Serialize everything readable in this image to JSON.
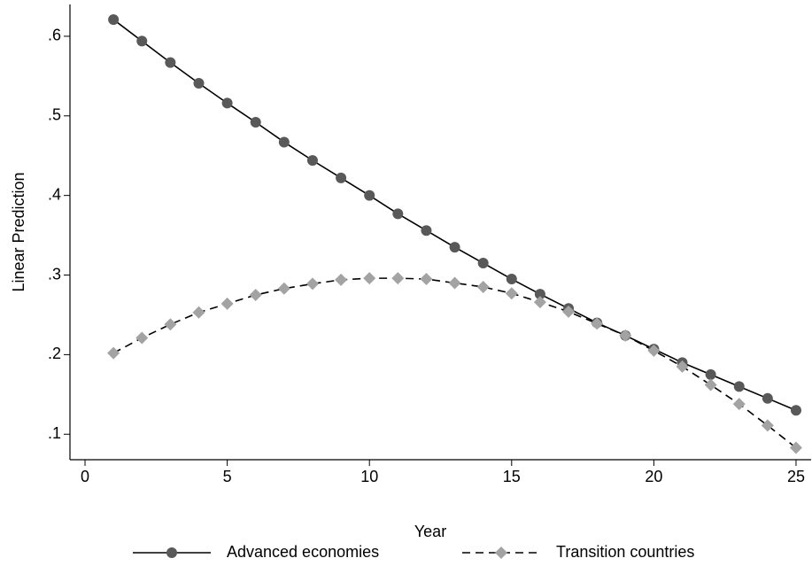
{
  "chart_data": {
    "type": "line",
    "x_label": "Year",
    "y_label": "Linear Prediction",
    "x": [
      1,
      2,
      3,
      4,
      5,
      6,
      7,
      8,
      9,
      10,
      11,
      12,
      13,
      14,
      15,
      16,
      17,
      18,
      19,
      20,
      21,
      22,
      23,
      24,
      25
    ],
    "series": [
      {
        "name": "Advanced economies",
        "color": "#595959",
        "line_color": "#000000",
        "dash": false,
        "marker": "circle",
        "values": [
          0.621,
          0.594,
          0.567,
          0.541,
          0.516,
          0.492,
          0.467,
          0.444,
          0.422,
          0.4,
          0.377,
          0.356,
          0.335,
          0.315,
          0.295,
          0.276,
          0.258,
          0.24,
          0.224,
          0.207,
          0.19,
          0.175,
          0.16,
          0.145,
          0.13
        ]
      },
      {
        "name": "Transition countries",
        "color": "#a3a3a3",
        "line_color": "#000000",
        "dash": true,
        "marker": "diamond",
        "values": [
          0.202,
          0.221,
          0.238,
          0.253,
          0.264,
          0.275,
          0.283,
          0.289,
          0.294,
          0.296,
          0.296,
          0.295,
          0.29,
          0.285,
          0.277,
          0.266,
          0.254,
          0.239,
          0.224,
          0.205,
          0.185,
          0.162,
          0.138,
          0.111,
          0.083
        ]
      }
    ],
    "xlim": [
      -0.53,
      25.53
    ],
    "ylim": [
      0.068,
      0.64
    ],
    "xticks": [
      0,
      5,
      10,
      15,
      20,
      25
    ],
    "yticks": [
      {
        "value": 0.1,
        "label": ".1"
      },
      {
        "value": 0.2,
        "label": ".2"
      },
      {
        "value": 0.3,
        "label": ".3"
      },
      {
        "value": 0.4,
        "label": ".4"
      },
      {
        "value": 0.5,
        "label": ".5"
      },
      {
        "value": 0.6,
        "label": ".6"
      }
    ],
    "grid": false,
    "legend": "bottom"
  }
}
